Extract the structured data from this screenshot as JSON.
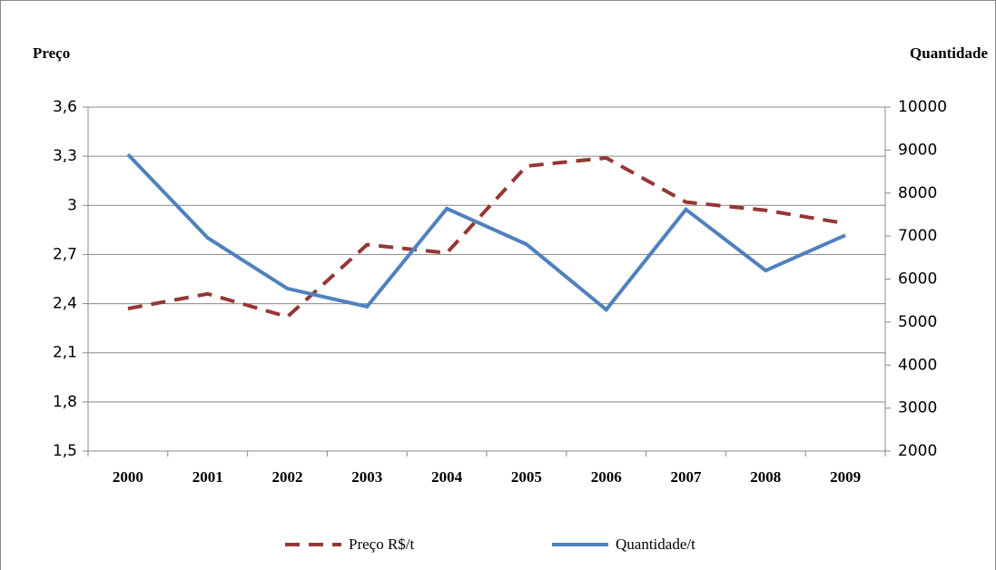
{
  "chart_data": {
    "type": "line",
    "y_label": "Preço",
    "y2_label": "Quantidade",
    "categories": [
      "2000",
      "2001",
      "2002",
      "2003",
      "2004",
      "2005",
      "2006",
      "2007",
      "2008",
      "2009"
    ],
    "series": [
      {
        "name": "Preço R$/t",
        "color": "#953735",
        "dashed": true,
        "values": [
          2.37,
          2.46,
          2.32,
          2.76,
          2.71,
          3.24,
          3.29,
          3.02,
          2.97,
          2.89
        ]
      },
      {
        "name": "Quantidade/t",
        "color": "#4f81bd",
        "dashed": false,
        "axis": "y2",
        "values": [
          8900,
          6960,
          5780,
          5360,
          7640,
          6810,
          5290,
          7620,
          6200,
          7020
        ]
      }
    ],
    "ylim": [
      1.5,
      3.6
    ],
    "yticks": [
      {
        "value": 1.5,
        "label": "1,5"
      },
      {
        "value": 1.8,
        "label": "1,8"
      },
      {
        "value": 2.1,
        "label": "2,1"
      },
      {
        "value": 2.4,
        "label": "2,4"
      },
      {
        "value": 2.7,
        "label": "2,7"
      },
      3,
      {
        "value": 3.3,
        "label": "3,3"
      },
      {
        "value": 3.6,
        "label": "3,6"
      }
    ],
    "y2lim": [
      2000,
      10000
    ],
    "y2ticks": [
      2000,
      3000,
      4000,
      5000,
      6000,
      7000,
      8000,
      9000,
      10000
    ],
    "grid": true,
    "legend": "bottom"
  }
}
